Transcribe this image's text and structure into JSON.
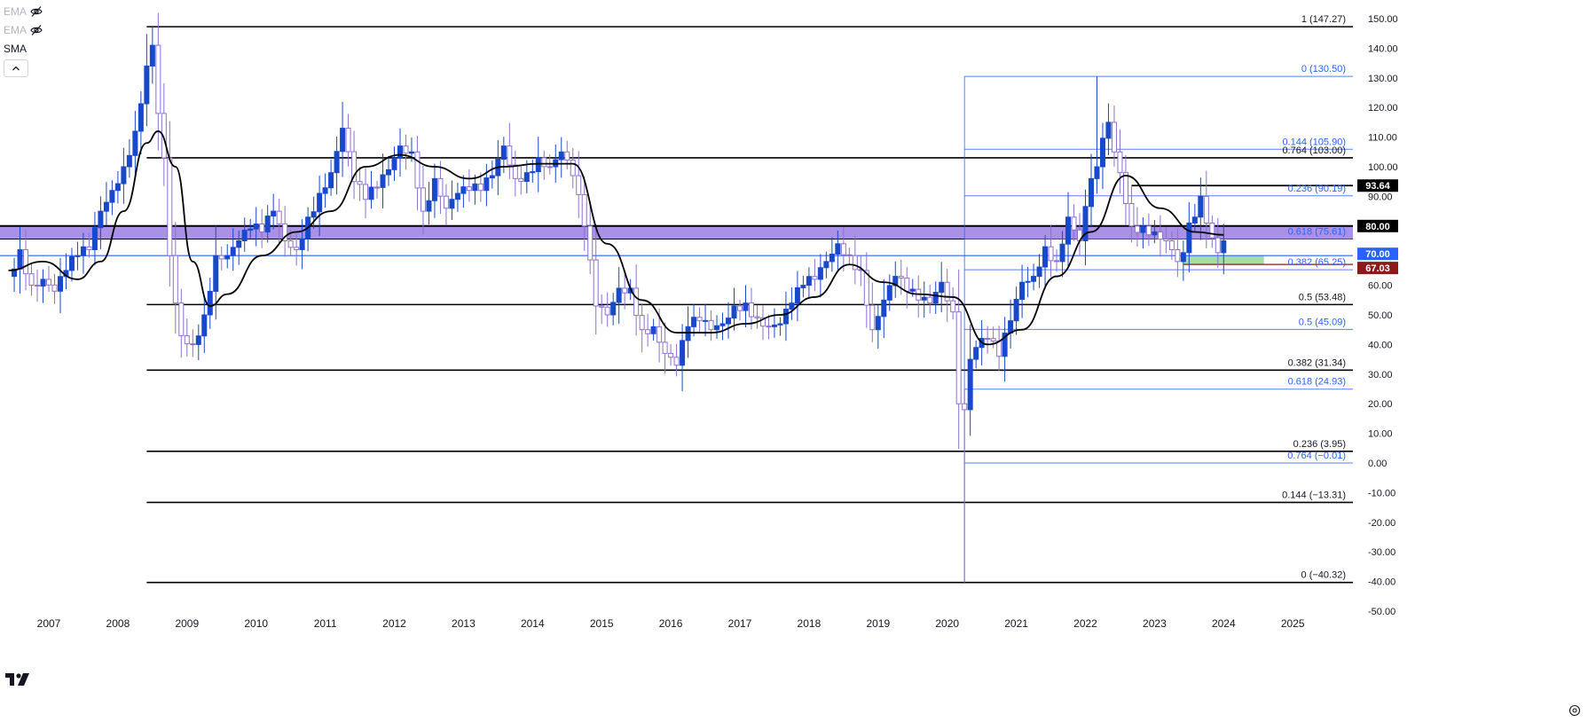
{
  "legend": {
    "items": [
      {
        "label": "EMA",
        "hidden": true
      },
      {
        "label": "EMA",
        "hidden": true
      },
      {
        "label": "SMA",
        "hidden": false
      }
    ]
  },
  "colors": {
    "up": "#1848cc",
    "down": "#8e6fd0",
    "sma": "#000000",
    "fib_black": "#000000",
    "fib_blue": "#2a62ff",
    "zone": "#9a7fe0",
    "green_zone": "#a7dca7",
    "tag_dark": "#000000",
    "tag_blue": "#2962ff",
    "tag_red": "#8b1a1a"
  },
  "chart_data": {
    "type": "candlestick",
    "x_axis": {
      "labels": [
        "2007",
        "2008",
        "2009",
        "2010",
        "2011",
        "2012",
        "2013",
        "2014",
        "2015",
        "2016",
        "2017",
        "2018",
        "2019",
        "2020",
        "2021",
        "2022",
        "2023",
        "2024",
        "2025"
      ],
      "range": [
        "2006-06",
        "2025-12"
      ]
    },
    "y_axis": {
      "min": -50,
      "max": 150,
      "ticks": [
        "150.00",
        "140.00",
        "130.00",
        "120.00",
        "110.00",
        "100.00",
        "90.00",
        "80.00",
        "70.00",
        "60.00",
        "50.00",
        "40.00",
        "30.00",
        "20.00",
        "10.00",
        "0.00",
        "-10.00",
        "-20.00",
        "-30.00",
        "-40.00",
        "-50.00"
      ]
    },
    "anchors": [
      [
        "2006-06",
        63
      ],
      [
        "2006-08",
        72
      ],
      [
        "2006-10",
        60
      ],
      [
        "2006-12",
        62
      ],
      [
        "2007-02",
        58
      ],
      [
        "2007-04",
        65
      ],
      [
        "2007-06",
        70
      ],
      [
        "2007-08",
        72
      ],
      [
        "2007-10",
        85
      ],
      [
        "2007-12",
        92
      ],
      [
        "2008-02",
        100
      ],
      [
        "2008-04",
        112
      ],
      [
        "2008-06",
        134
      ],
      [
        "2008-07",
        141
      ],
      [
        "2008-08",
        118
      ],
      [
        "2008-09",
        103
      ],
      [
        "2008-10",
        70
      ],
      [
        "2008-11",
        54
      ],
      [
        "2008-12",
        43
      ],
      [
        "2009-02",
        40
      ],
      [
        "2009-04",
        50
      ],
      [
        "2009-06",
        70
      ],
      [
        "2009-08",
        70
      ],
      [
        "2009-10",
        75
      ],
      [
        "2009-12",
        79
      ],
      [
        "2010-02",
        78
      ],
      [
        "2010-04",
        85
      ],
      [
        "2010-06",
        75
      ],
      [
        "2010-08",
        72
      ],
      [
        "2010-10",
        83
      ],
      [
        "2010-12",
        91
      ],
      [
        "2011-02",
        98
      ],
      [
        "2011-04",
        113
      ],
      [
        "2011-06",
        95
      ],
      [
        "2011-08",
        89
      ],
      [
        "2011-10",
        93
      ],
      [
        "2011-12",
        99
      ],
      [
        "2012-02",
        107
      ],
      [
        "2012-04",
        105
      ],
      [
        "2012-06",
        85
      ],
      [
        "2012-08",
        96
      ],
      [
        "2012-10",
        86
      ],
      [
        "2012-12",
        91
      ],
      [
        "2013-02",
        92
      ],
      [
        "2013-04",
        92
      ],
      [
        "2013-06",
        97
      ],
      [
        "2013-08",
        107
      ],
      [
        "2013-10",
        96
      ],
      [
        "2013-12",
        98
      ],
      [
        "2014-02",
        103
      ],
      [
        "2014-04",
        100
      ],
      [
        "2014-06",
        105
      ],
      [
        "2014-08",
        97
      ],
      [
        "2014-10",
        80
      ],
      [
        "2014-12",
        53
      ],
      [
        "2015-02",
        50
      ],
      [
        "2015-04",
        59
      ],
      [
        "2015-06",
        59
      ],
      [
        "2015-08",
        45
      ],
      [
        "2015-10",
        46
      ],
      [
        "2015-12",
        37
      ],
      [
        "2016-02",
        33
      ],
      [
        "2016-04",
        46
      ],
      [
        "2016-06",
        48
      ],
      [
        "2016-08",
        45
      ],
      [
        "2016-10",
        47
      ],
      [
        "2016-12",
        53
      ],
      [
        "2017-02",
        54
      ],
      [
        "2017-04",
        49
      ],
      [
        "2017-06",
        46
      ],
      [
        "2017-08",
        47
      ],
      [
        "2017-10",
        54
      ],
      [
        "2017-12",
        60
      ],
      [
        "2018-02",
        62
      ],
      [
        "2018-04",
        68
      ],
      [
        "2018-06",
        74
      ],
      [
        "2018-08",
        70
      ],
      [
        "2018-10",
        65
      ],
      [
        "2018-12",
        45
      ],
      [
        "2019-02",
        55
      ],
      [
        "2019-04",
        63
      ],
      [
        "2019-06",
        58
      ],
      [
        "2019-08",
        55
      ],
      [
        "2019-10",
        54
      ],
      [
        "2019-12",
        61
      ],
      [
        "2020-02",
        51
      ],
      [
        "2020-03",
        20
      ],
      [
        "2020-04",
        18
      ],
      [
        "2020-05",
        35
      ],
      [
        "2020-06",
        39
      ],
      [
        "2020-08",
        42
      ],
      [
        "2020-10",
        36
      ],
      [
        "2020-12",
        48
      ],
      [
        "2021-02",
        61
      ],
      [
        "2021-04",
        63
      ],
      [
        "2021-06",
        73
      ],
      [
        "2021-08",
        68
      ],
      [
        "2021-10",
        83
      ],
      [
        "2021-12",
        75
      ],
      [
        "2022-02",
        96
      ],
      [
        "2022-03",
        100
      ],
      [
        "2022-05",
        115
      ],
      [
        "2022-06",
        105
      ],
      [
        "2022-07",
        98
      ],
      [
        "2022-09",
        80
      ],
      [
        "2022-11",
        80
      ],
      [
        "2023-01",
        78
      ],
      [
        "2023-03",
        75
      ],
      [
        "2023-05",
        68
      ],
      [
        "2023-06",
        71
      ],
      [
        "2023-07",
        81
      ],
      [
        "2023-08",
        83
      ],
      [
        "2023-09",
        90
      ],
      [
        "2023-10",
        81
      ],
      [
        "2023-11",
        76
      ],
      [
        "2023-12",
        71
      ],
      [
        "2024-01",
        75
      ]
    ],
    "sma_anchors": [
      [
        "2006-06",
        65
      ],
      [
        "2006-12",
        68
      ],
      [
        "2007-06",
        62
      ],
      [
        "2007-10",
        68
      ],
      [
        "2008-02",
        85
      ],
      [
        "2008-06",
        108
      ],
      [
        "2008-08",
        112
      ],
      [
        "2008-11",
        100
      ],
      [
        "2009-02",
        68
      ],
      [
        "2009-05",
        53
      ],
      [
        "2009-08",
        57
      ],
      [
        "2010-02",
        70
      ],
      [
        "2010-08",
        78
      ],
      [
        "2011-02",
        85
      ],
      [
        "2011-08",
        100
      ],
      [
        "2012-02",
        104
      ],
      [
        "2012-08",
        100
      ],
      [
        "2013-02",
        96
      ],
      [
        "2013-08",
        100
      ],
      [
        "2014-02",
        101
      ],
      [
        "2014-08",
        101
      ],
      [
        "2015-02",
        74
      ],
      [
        "2015-08",
        55
      ],
      [
        "2016-02",
        44
      ],
      [
        "2016-08",
        44
      ],
      [
        "2017-02",
        47
      ],
      [
        "2017-08",
        50
      ],
      [
        "2018-02",
        56
      ],
      [
        "2018-08",
        67
      ],
      [
        "2019-02",
        61
      ],
      [
        "2019-08",
        57
      ],
      [
        "2020-02",
        56
      ],
      [
        "2020-08",
        40
      ],
      [
        "2021-02",
        45
      ],
      [
        "2021-08",
        63
      ],
      [
        "2022-02",
        78
      ],
      [
        "2022-08",
        97
      ],
      [
        "2023-02",
        86
      ],
      [
        "2023-08",
        78
      ],
      [
        "2024-01",
        77
      ]
    ],
    "fib_black": {
      "x_start": "2008-06",
      "levels": [
        {
          "label": "1 (147.27)",
          "value": 147.27
        },
        {
          "label": "0.764 (103.00)",
          "value": 103.0
        },
        {
          "label": "0.5 (53.48)",
          "value": 53.48
        },
        {
          "label": "0.382 (31.34)",
          "value": 31.34
        },
        {
          "label": "0.236 (3.95)",
          "value": 3.95
        },
        {
          "label": "0.144 (−13.31)",
          "value": -13.31
        },
        {
          "label": "0 (−40.32)",
          "value": -40.32
        }
      ]
    },
    "fib_blue": {
      "x_start": "2020-04",
      "levels": [
        {
          "label": "0 (130.50)",
          "value": 130.5
        },
        {
          "label": "0.144 (105.90)",
          "value": 105.9
        },
        {
          "label": "0.236 (90.19)",
          "value": 90.19
        },
        {
          "label": "0.618 (75.61)",
          "value": 75.61
        },
        {
          "label": "0.382 (65.25)",
          "value": 65.25
        },
        {
          "label": "0.5 (45.09)",
          "value": 45.09
        },
        {
          "label": "0.618 (24.93)",
          "value": 24.93
        },
        {
          "label": "0.764 (−0.01)",
          "value": -0.01
        }
      ]
    },
    "zone": {
      "from": 75.61,
      "to": 80.0
    },
    "green_zone": {
      "from": 67.03,
      "to": 70.0,
      "x_start": "2023-06",
      "x_end": "2024-08"
    },
    "level_70": 70.0,
    "level_93": {
      "value": 93.64,
      "x_start": "2022-09"
    },
    "level_67": {
      "value": 67.03,
      "x_start": "2023-06"
    },
    "price_tags": [
      {
        "text": "93.64",
        "value": 93.64,
        "color": "tag_dark"
      },
      {
        "text": "80.00",
        "value": 80.0,
        "color": "tag_dark"
      },
      {
        "text": "70.00",
        "value": 70.0,
        "color": "tag_blue"
      },
      {
        "text": "67.03",
        "value": 67.03,
        "color": "tag_red"
      }
    ]
  }
}
